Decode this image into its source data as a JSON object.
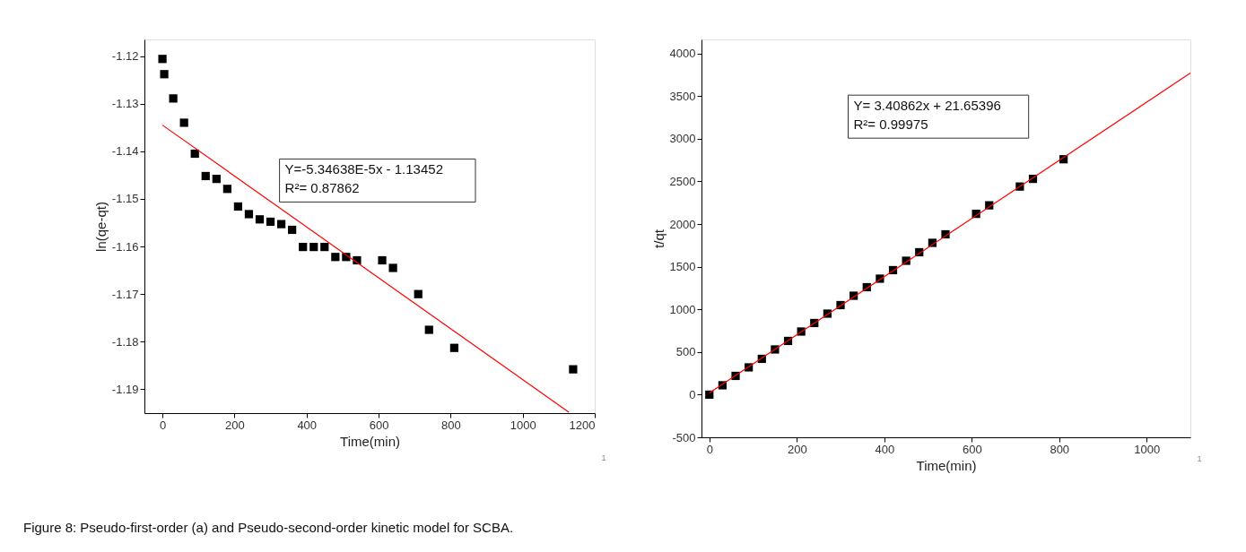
{
  "chart_data": [
    {
      "type": "scatter",
      "xlabel": "Time(min)",
      "ylabel": "ln(qe-qt)",
      "xlim": [
        -50,
        1200
      ],
      "ylim": [
        -1.195,
        -1.1165
      ],
      "xticks": [
        0,
        200,
        400,
        600,
        800,
        1000,
        1200
      ],
      "yticks": [
        -1.19,
        -1.18,
        -1.17,
        -1.16,
        -1.15,
        -1.14,
        -1.13,
        -1.12
      ],
      "grid": false,
      "legend": false,
      "series": [
        {
          "marker": "square",
          "color": "#000000",
          "x": [
            0,
            5,
            30,
            60,
            90,
            120,
            150,
            180,
            210,
            240,
            270,
            300,
            330,
            360,
            390,
            420,
            450,
            480,
            510,
            540,
            610,
            640,
            710,
            740,
            810,
            1140
          ],
          "values": [
            -1.1206,
            -1.1238,
            -1.1289,
            -1.134,
            -1.1405,
            -1.1452,
            -1.1458,
            -1.1479,
            -1.1516,
            -1.1532,
            -1.1543,
            -1.1548,
            -1.1553,
            -1.1565,
            -1.1601,
            -1.1601,
            -1.1601,
            -1.1622,
            -1.1622,
            -1.1629,
            -1.1629,
            -1.1645,
            -1.17,
            -1.1775,
            -1.1813,
            -1.1858
          ]
        },
        {
          "type": "line",
          "marker": "none",
          "line_style": "solid",
          "color": "#ff0000",
          "x": [
            0,
            1128
          ],
          "values": [
            -1.1345,
            -1.1948
          ]
        }
      ],
      "annotations": [
        "Y=-5.34638E-5x - 1.13452\nR²= 0.87862",
        "1",
        "Figure 8: Pseudo-first-order (a) and Pseudo-second-order kinetic model for SCBA."
      ]
    },
    {
      "type": "scatter",
      "xlabel": "Time(min)",
      "ylabel": "t/qt",
      "xlim": [
        -18,
        1100
      ],
      "ylim": [
        -500,
        4165
      ],
      "xticks": [
        0,
        200,
        400,
        600,
        800,
        1000
      ],
      "yticks": [
        -500,
        0,
        500,
        1000,
        1500,
        2000,
        2500,
        3000,
        3500,
        4000
      ],
      "grid": false,
      "legend": false,
      "series": [
        {
          "marker": "square",
          "color": "#000000",
          "x": [
            0,
            30,
            60,
            90,
            120,
            150,
            180,
            210,
            240,
            270,
            300,
            330,
            360,
            390,
            420,
            450,
            480,
            510,
            540,
            610,
            640,
            710,
            740,
            810
          ],
          "values": [
            0,
            110,
            220,
            320,
            420,
            530,
            630,
            740,
            840,
            950,
            1050,
            1160,
            1260,
            1360,
            1460,
            1570,
            1670,
            1780,
            1880,
            2120,
            2220,
            2440,
            2530,
            2760
          ]
        },
        {
          "type": "line",
          "marker": "none",
          "line_style": "solid",
          "color": "#ff0000",
          "x": [
            0,
            1100
          ],
          "values": [
            20,
            3770
          ]
        }
      ],
      "annotations": [
        "Y= 3.40862x + 21.65396\nR²= 0.99975",
        "1"
      ]
    }
  ]
}
